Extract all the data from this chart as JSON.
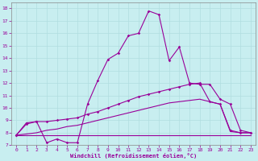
{
  "xlabel": "Windchill (Refroidissement éolien,°C)",
  "background_color": "#c8eef0",
  "line_color": "#990099",
  "xlim": [
    -0.5,
    23.5
  ],
  "ylim": [
    7,
    18.5
  ],
  "xticks": [
    0,
    1,
    2,
    3,
    4,
    5,
    6,
    7,
    8,
    9,
    10,
    11,
    12,
    13,
    14,
    15,
    16,
    17,
    18,
    19,
    20,
    21,
    22,
    23
  ],
  "yticks": [
    7,
    8,
    9,
    10,
    11,
    12,
    13,
    14,
    15,
    16,
    17,
    18
  ],
  "line1_x": [
    0,
    1,
    2,
    3,
    4,
    5,
    6,
    7,
    8,
    9,
    10,
    11,
    12,
    13,
    14,
    15,
    16,
    17,
    18,
    19,
    20,
    21,
    22,
    23
  ],
  "line1_y": [
    7.8,
    8.8,
    8.9,
    7.2,
    7.5,
    7.2,
    7.2,
    10.3,
    12.2,
    13.9,
    14.4,
    15.8,
    16.0,
    17.8,
    17.5,
    13.8,
    14.9,
    12.0,
    11.9,
    11.9,
    10.7,
    10.3,
    8.2,
    8.0
  ],
  "line2_x": [
    0,
    1,
    2,
    3,
    4,
    5,
    6,
    7,
    8,
    9,
    10,
    11,
    12,
    13,
    14,
    15,
    16,
    17,
    18,
    19,
    20,
    21,
    22,
    23
  ],
  "line2_y": [
    7.8,
    8.7,
    8.9,
    8.9,
    9.0,
    9.1,
    9.2,
    9.5,
    9.7,
    10.0,
    10.3,
    10.6,
    10.9,
    11.1,
    11.3,
    11.5,
    11.7,
    11.9,
    12.0,
    10.5,
    10.3,
    8.2,
    8.0,
    8.0
  ],
  "line3_x": [
    0,
    1,
    2,
    3,
    4,
    5,
    6,
    7,
    8,
    9,
    10,
    11,
    12,
    13,
    14,
    15,
    16,
    17,
    18,
    19,
    20,
    21,
    22,
    23
  ],
  "line3_y": [
    7.8,
    7.9,
    8.0,
    8.2,
    8.3,
    8.5,
    8.6,
    8.8,
    9.0,
    9.2,
    9.4,
    9.6,
    9.8,
    10.0,
    10.2,
    10.4,
    10.5,
    10.6,
    10.7,
    10.5,
    10.3,
    8.1,
    8.0,
    8.0
  ],
  "line4_x": [
    0,
    1,
    2,
    3,
    4,
    5,
    6,
    7,
    8,
    9,
    10,
    11,
    12,
    13,
    14,
    15,
    16,
    17,
    18,
    19,
    20,
    21,
    22,
    23
  ],
  "line4_y": [
    7.8,
    7.8,
    7.8,
    7.8,
    7.8,
    7.8,
    7.8,
    7.8,
    7.8,
    7.8,
    7.8,
    7.8,
    7.8,
    7.8,
    7.8,
    7.8,
    7.8,
    7.8,
    7.8,
    7.8,
    7.8,
    7.8,
    7.8,
    7.8
  ]
}
